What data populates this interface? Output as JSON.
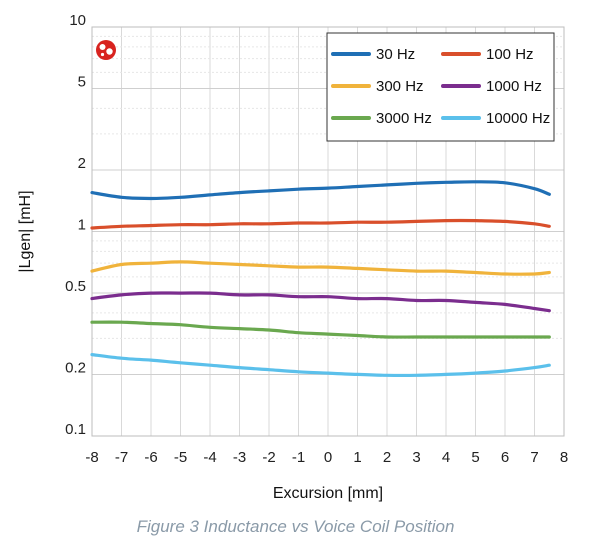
{
  "caption": "Figure 3 Inductance vs Voice Coil Position",
  "logo_icon": "red-circular-logo-icon",
  "chart_data": {
    "type": "line",
    "xlabel": "Excursion [mm]",
    "ylabel": "|Lgen| [mH]",
    "xlim": [
      -8,
      8
    ],
    "ylim": [
      0.1,
      10
    ],
    "y_scale": "log",
    "grid": true,
    "legend_position": "top-right",
    "xticks": [
      "-8",
      "-7",
      "-6",
      "-5",
      "-4",
      "-3",
      "-2",
      "-1",
      "0",
      "1",
      "2",
      "3",
      "4",
      "5",
      "6",
      "7",
      "8"
    ],
    "yticks": [
      {
        "value": 0.1,
        "label": "0.1"
      },
      {
        "value": 0.2,
        "label": "0.2"
      },
      {
        "value": 0.5,
        "label": "0.5"
      },
      {
        "value": 1,
        "label": "1"
      },
      {
        "value": 2,
        "label": "2"
      },
      {
        "value": 5,
        "label": "5"
      },
      {
        "value": 10,
        "label": "10"
      }
    ],
    "x": [
      -8,
      -7,
      -6,
      -5,
      -4,
      -3,
      -2,
      -1,
      0,
      1,
      2,
      3,
      4,
      5,
      6,
      7,
      7.5
    ],
    "series": [
      {
        "name": "30 Hz",
        "color": "#1f6fb5",
        "values": [
          1.55,
          1.47,
          1.45,
          1.47,
          1.51,
          1.55,
          1.58,
          1.61,
          1.63,
          1.66,
          1.69,
          1.72,
          1.74,
          1.75,
          1.73,
          1.62,
          1.52
        ]
      },
      {
        "name": "100 Hz",
        "color": "#d94f2b",
        "values": [
          1.04,
          1.06,
          1.07,
          1.08,
          1.08,
          1.09,
          1.09,
          1.1,
          1.1,
          1.11,
          1.11,
          1.12,
          1.13,
          1.13,
          1.12,
          1.09,
          1.06
        ]
      },
      {
        "name": "300 Hz",
        "color": "#f0b33b",
        "values": [
          0.64,
          0.69,
          0.7,
          0.71,
          0.7,
          0.69,
          0.68,
          0.67,
          0.67,
          0.66,
          0.65,
          0.64,
          0.64,
          0.63,
          0.62,
          0.62,
          0.63
        ]
      },
      {
        "name": "1000 Hz",
        "color": "#7b2d8e",
        "values": [
          0.47,
          0.49,
          0.5,
          0.5,
          0.5,
          0.49,
          0.49,
          0.48,
          0.48,
          0.47,
          0.47,
          0.46,
          0.46,
          0.45,
          0.44,
          0.42,
          0.41
        ]
      },
      {
        "name": "3000 Hz",
        "color": "#6aa84f",
        "values": [
          0.36,
          0.36,
          0.355,
          0.35,
          0.34,
          0.335,
          0.33,
          0.32,
          0.315,
          0.31,
          0.305,
          0.305,
          0.305,
          0.305,
          0.305,
          0.305,
          0.305
        ]
      },
      {
        "name": "10000 Hz",
        "color": "#5bc0eb",
        "values": [
          0.25,
          0.24,
          0.235,
          0.228,
          0.222,
          0.216,
          0.211,
          0.206,
          0.203,
          0.2,
          0.198,
          0.198,
          0.2,
          0.203,
          0.208,
          0.216,
          0.222
        ]
      }
    ]
  }
}
